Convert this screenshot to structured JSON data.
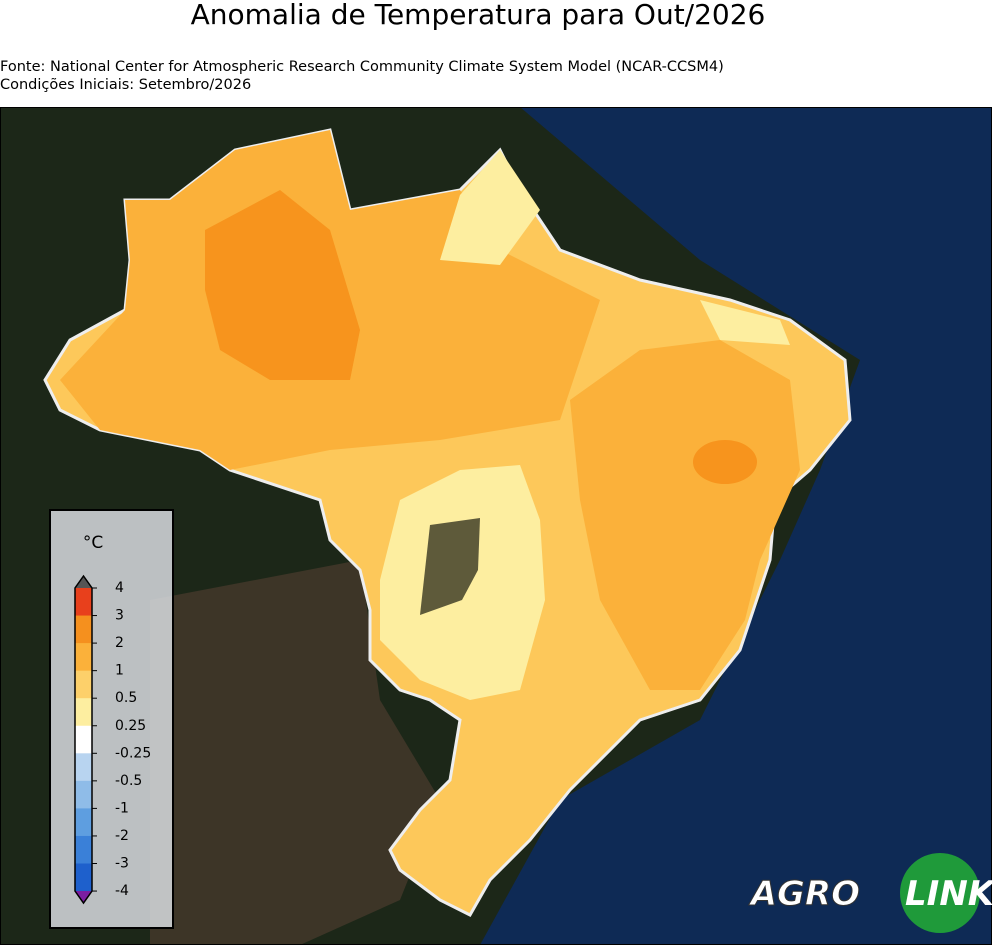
{
  "header": {
    "title": "Anomalia de Temperatura para Out/2026",
    "source": "Fonte: National Center for Atmospheric Research Community Climate System Model (NCAR-CCSM4)",
    "initial_conditions": "Condições Iniciais: Setembro/2026"
  },
  "legend": {
    "unit": "°C",
    "ticks": [
      4,
      3,
      2,
      1,
      0.5,
      0.25,
      -0.25,
      -0.5,
      -1,
      -2,
      -3,
      -4
    ],
    "colors": [
      "#e8401c",
      "#f5901e",
      "#fbb13a",
      "#fdd06a",
      "#fdeea0",
      "#ffffff",
      "#b8d4f0",
      "#8fbce8",
      "#5e9ee0",
      "#3a80d8",
      "#1e60cc"
    ],
    "extend_colors": [
      "#555555",
      "#7b1fa2"
    ]
  },
  "logo": {
    "part1": "AGRO",
    "part2": "LINK"
  }
}
